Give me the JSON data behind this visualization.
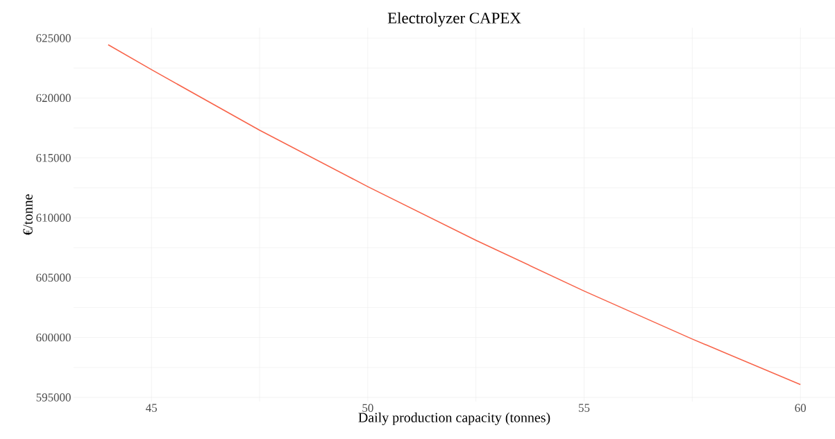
{
  "chart_data": {
    "type": "line",
    "title": "Electrolyzer CAPEX",
    "xlabel": "Daily production capacity (tonnes)",
    "ylabel": "€/tonne",
    "x": [
      44,
      45,
      47.5,
      50,
      52.5,
      55,
      57.5,
      60
    ],
    "series": [
      {
        "color": "#f8644a",
        "values": [
          624450,
          622370,
          617310,
          612600,
          608120,
          603880,
          599870,
          596070
        ]
      }
    ],
    "xlim": [
      43.2,
      60.8
    ],
    "ylim": [
      594650,
      625870
    ],
    "xticks": [
      45,
      {
        "value": 47.5,
        "label": null
      },
      50,
      {
        "value": 52.5,
        "label": null
      },
      55,
      {
        "value": 57.5,
        "label": null
      },
      60
    ],
    "yticks": [
      595000,
      {
        "value": 597500,
        "label": null
      },
      600000,
      {
        "value": 602500,
        "label": null
      },
      605000,
      {
        "value": 607500,
        "label": null
      },
      610000,
      {
        "value": 612500,
        "label": null
      },
      615000,
      {
        "value": 617500,
        "label": null
      },
      620000,
      {
        "value": 622500,
        "label": null
      },
      625000
    ],
    "grid": true,
    "marker": "none",
    "line_style": "solid"
  }
}
